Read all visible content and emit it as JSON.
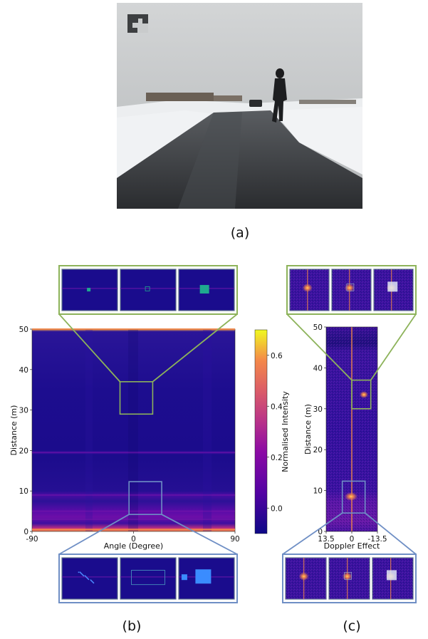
{
  "captions": {
    "a": "(a)",
    "b": "(b)",
    "c": "(c)"
  },
  "photo": {
    "description_icon": "camera-photo-icon",
    "colors": {
      "sky": "#c9cbcc",
      "snow": "#eef0f2",
      "road": "#3c3f43"
    }
  },
  "colorbar": {
    "label": "Normalised Intensity",
    "ticks": [
      "0.6",
      "0.4",
      "0.2",
      "0.0"
    ],
    "tick_values": [
      0.6,
      0.4,
      0.2,
      0.0
    ],
    "range": [
      -0.1,
      0.7
    ],
    "colors": [
      "#0d0887",
      "#6a00a8",
      "#b12a90",
      "#e16462",
      "#fca636",
      "#f0f921"
    ]
  },
  "chart_data": [
    {
      "type": "heatmap",
      "title": "",
      "xlabel": "Angle (Degree)",
      "ylabel": "Distance (m)",
      "xlim": [
        -90,
        90
      ],
      "ylim": [
        0,
        50
      ],
      "xticks": [
        "-90",
        "0",
        "90"
      ],
      "xtick_values": [
        -90,
        0,
        90
      ],
      "yticks": [
        "0",
        "10",
        "20",
        "30",
        "40",
        "50"
      ],
      "ytick_values": [
        0,
        10,
        20,
        30,
        40,
        50
      ],
      "highlight_regions": [
        {
          "name": "far",
          "x": [
            -12,
            17
          ],
          "y": [
            29,
            37
          ],
          "color": "#8db35a"
        },
        {
          "name": "near",
          "x": [
            -4,
            25
          ],
          "y": [
            4.2,
            12.3
          ],
          "color": "#6f8fc5"
        }
      ],
      "bright_bands_y": [
        0.5,
        3,
        5,
        9,
        19.5,
        50
      ]
    },
    {
      "type": "heatmap",
      "title": "",
      "xlabel": "Doppler Effect",
      "ylabel": "Distance (m)",
      "xlim": [
        13.5,
        -13.5
      ],
      "ylim": [
        0,
        50
      ],
      "xticks": [
        "13.5",
        "0",
        "-13.5"
      ],
      "xtick_values": [
        13.5,
        0,
        -13.5
      ],
      "yticks": [
        "0",
        "10",
        "20",
        "30",
        "40",
        "50"
      ],
      "ytick_values": [
        0,
        10,
        20,
        30,
        40,
        50
      ],
      "highlight_regions": [
        {
          "name": "far",
          "x": [
            0,
            -10
          ],
          "y": [
            30,
            37
          ],
          "color": "#8db35a"
        },
        {
          "name": "near",
          "x": [
            5,
            -7
          ],
          "y": [
            4.5,
            12.3
          ],
          "color": "#6f8fc5"
        }
      ]
    }
  ]
}
